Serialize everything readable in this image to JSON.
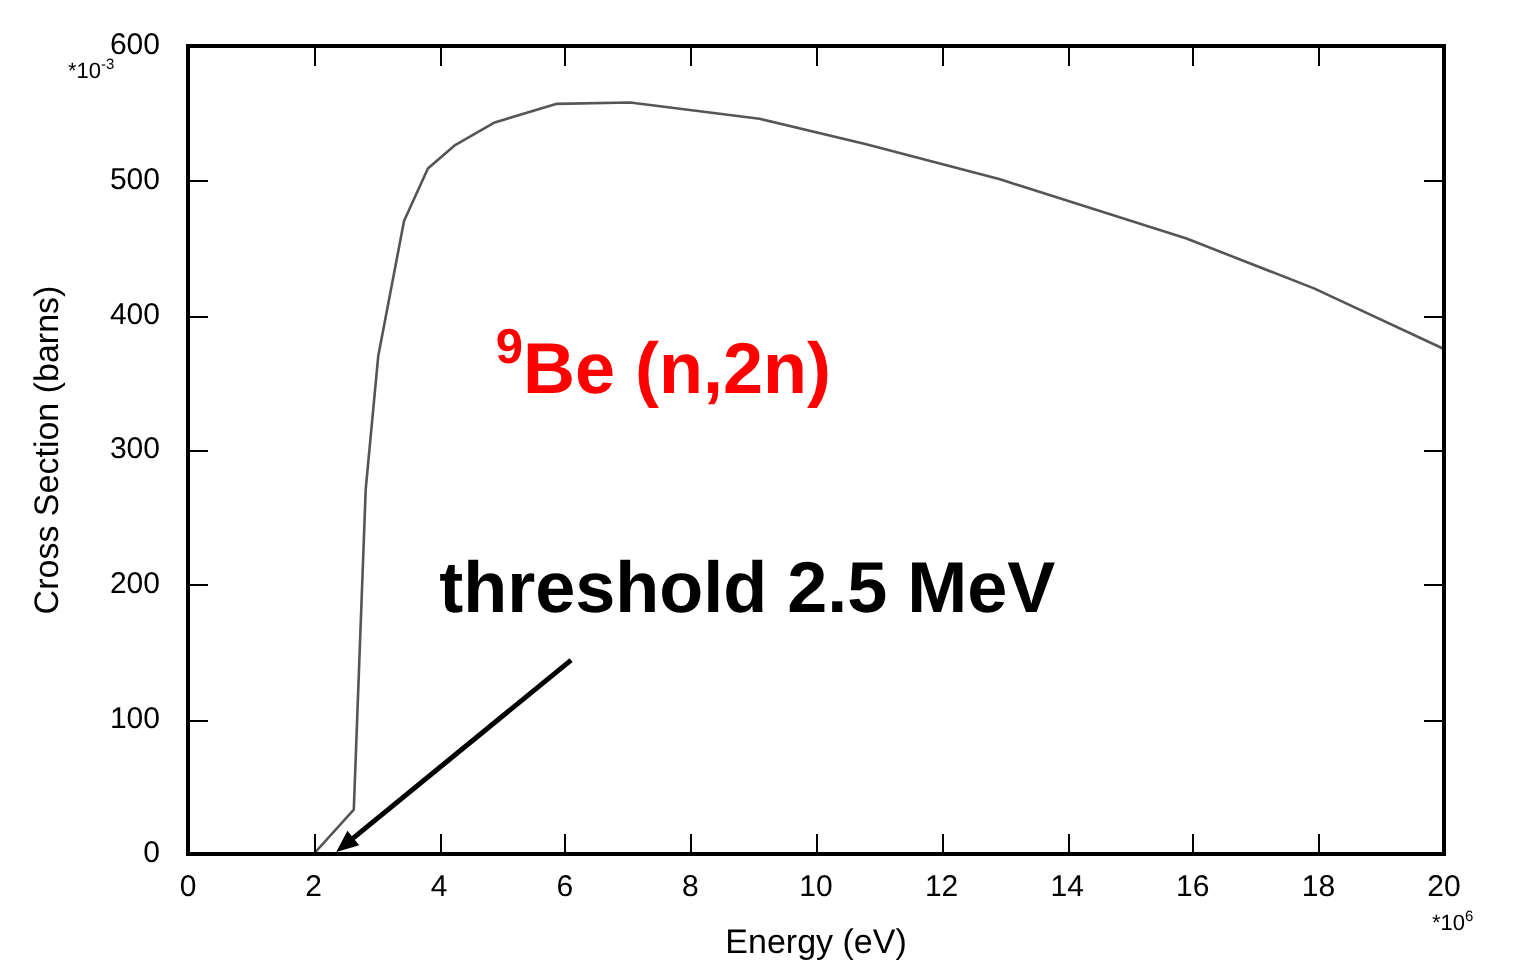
{
  "chart_data": {
    "type": "line",
    "xlabel": "Energy (eV)",
    "ylabel": "Cross Section (barns)",
    "x": [
      2.0,
      2.64,
      2.83,
      3.03,
      3.44,
      3.82,
      4.24,
      4.87,
      5.86,
      7.04,
      9.1,
      10.8,
      12.93,
      15.9,
      17.93,
      20
    ],
    "series": [
      {
        "color": "#555555",
        "values": [
          0,
          33,
          271,
          370,
          470,
          509,
          526,
          543,
          557,
          558,
          546,
          527,
          501,
          457,
          420,
          375
        ]
      }
    ],
    "xlim": [
      0,
      20
    ],
    "xticks": [
      0,
      2,
      4,
      6,
      8,
      10,
      12,
      14,
      16,
      18,
      20
    ],
    "ylim": [
      0,
      600
    ],
    "yticks": [
      0,
      100,
      200,
      300,
      400,
      500,
      600
    ],
    "grid": false,
    "legend": false,
    "marker": "none",
    "line_style": "solid",
    "annotations": [
      "$^{9}$Be (n,2n)",
      "threshold 2.5 MeV",
      "*10$^{-3}$",
      "*10$^{6}$"
    ]
  }
}
